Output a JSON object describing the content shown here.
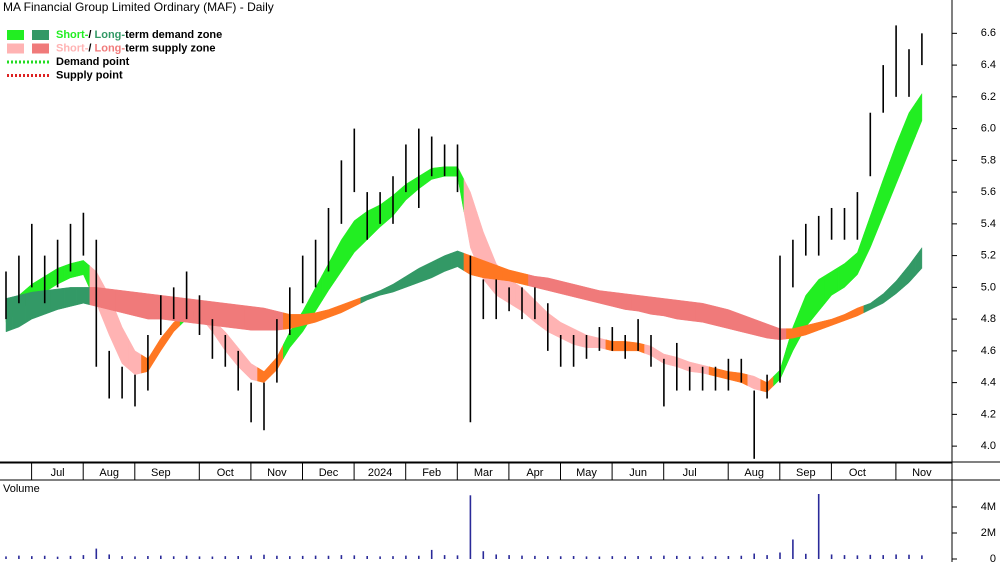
{
  "chart_data": [
    {
      "type": "hilo",
      "title": "MA Financial Group Limited Ordinary (MAF) - Daily",
      "categories": [
        null,
        null,
        null,
        null,
        "Jul",
        null,
        null,
        null,
        "Aug",
        null,
        null,
        null,
        "Sep",
        null,
        null,
        null,
        null,
        "Oct",
        null,
        null,
        null,
        "Nov",
        null,
        null,
        null,
        "Dec",
        null,
        null,
        null,
        "2024",
        null,
        null,
        null,
        "Feb",
        null,
        null,
        null,
        "Mar",
        null,
        null,
        null,
        "Apr",
        null,
        null,
        null,
        "May",
        null,
        null,
        null,
        "Jun",
        null,
        null,
        null,
        "Jul",
        null,
        null,
        null,
        null,
        "Aug",
        null,
        null,
        null,
        "Sep",
        null,
        null,
        null,
        "Oct",
        null,
        null,
        null,
        null,
        "Nov"
      ],
      "low": [
        4.8,
        4.9,
        5.0,
        4.9,
        5.0,
        5.1,
        5.2,
        4.5,
        4.3,
        4.3,
        4.25,
        4.35,
        4.7,
        4.8,
        4.8,
        4.7,
        4.55,
        4.5,
        4.35,
        4.15,
        4.1,
        4.4,
        4.7,
        4.9,
        5.0,
        5.1,
        5.4,
        5.6,
        5.3,
        5.4,
        5.4,
        5.6,
        5.5,
        5.7,
        5.7,
        5.6,
        4.15,
        4.8,
        4.8,
        4.85,
        4.8,
        4.8,
        4.6,
        4.5,
        4.5,
        4.55,
        4.6,
        4.6,
        4.55,
        4.6,
        4.5,
        4.25,
        4.35,
        4.35,
        4.35,
        4.35,
        4.35,
        4.4,
        3.92,
        4.3,
        4.4,
        5.0,
        5.2,
        5.2,
        5.3,
        5.3,
        5.3,
        5.7,
        6.1,
        6.2,
        6.2,
        6.4
      ],
      "high": [
        5.1,
        5.2,
        5.4,
        5.2,
        5.3,
        5.4,
        5.47,
        5.3,
        4.6,
        4.5,
        4.45,
        4.7,
        4.95,
        5.0,
        5.1,
        4.95,
        4.8,
        4.7,
        4.6,
        4.4,
        4.4,
        4.8,
        5.0,
        5.2,
        5.3,
        5.5,
        5.8,
        6.0,
        5.6,
        5.6,
        5.7,
        5.9,
        6.0,
        5.95,
        5.9,
        5.9,
        5.2,
        5.05,
        5.05,
        5.0,
        5.0,
        5.0,
        4.9,
        4.7,
        4.7,
        4.7,
        4.75,
        4.75,
        4.7,
        4.8,
        4.7,
        4.55,
        4.65,
        4.5,
        4.5,
        4.5,
        4.55,
        4.55,
        4.35,
        4.45,
        5.2,
        5.3,
        5.4,
        5.45,
        5.5,
        5.5,
        5.6,
        6.1,
        6.4,
        6.65,
        6.5,
        6.6
      ],
      "bar_color": "#000000",
      "bands": [
        {
          "lower": [
            4.78,
            4.85,
            4.92,
            4.97,
            5.02,
            5.06,
            5.08,
            4.9,
            4.7,
            4.52,
            4.45,
            4.47,
            4.6,
            4.72,
            4.8,
            4.82,
            4.72,
            4.6,
            4.5,
            4.42,
            4.4,
            4.48,
            4.62,
            4.72,
            4.85,
            4.98,
            5.1,
            5.22,
            5.3,
            5.38,
            5.45,
            5.55,
            5.62,
            5.68,
            5.7,
            5.7,
            5.25,
            5.05,
            4.95,
            4.9,
            4.85,
            4.78,
            4.72,
            4.68,
            4.64,
            4.62,
            4.62,
            4.6,
            4.6,
            4.6,
            4.57,
            4.52,
            4.5,
            4.47,
            4.46,
            4.44,
            4.42,
            4.4,
            4.36,
            4.34,
            4.42,
            4.6,
            4.75,
            4.85,
            4.95,
            5.0,
            5.08,
            5.25,
            5.45,
            5.65,
            5.85,
            6.05
          ],
          "upper": [
            4.88,
            4.95,
            5.02,
            5.07,
            5.12,
            5.15,
            5.17,
            5.1,
            4.95,
            4.75,
            4.6,
            4.55,
            4.68,
            4.78,
            4.84,
            4.86,
            4.8,
            4.72,
            4.62,
            4.52,
            4.47,
            4.56,
            4.72,
            4.85,
            5.0,
            5.15,
            5.3,
            5.42,
            5.48,
            5.52,
            5.58,
            5.65,
            5.7,
            5.75,
            5.76,
            5.76,
            5.6,
            5.35,
            5.15,
            5.05,
            5.0,
            4.92,
            4.84,
            4.78,
            4.74,
            4.7,
            4.68,
            4.66,
            4.66,
            4.65,
            4.63,
            4.58,
            4.56,
            4.53,
            4.51,
            4.49,
            4.47,
            4.46,
            4.44,
            4.4,
            4.48,
            4.75,
            4.95,
            5.05,
            5.1,
            5.15,
            5.22,
            5.45,
            5.68,
            5.9,
            6.1,
            6.22
          ],
          "colors": [
            "#22ee22",
            "#22ee22",
            "#22ee22",
            "#22ee22",
            "#22ee22",
            "#22ee22",
            "#22ee22",
            "#ffb3b3",
            "#ffb3b3",
            "#ffb3b3",
            "#ffb3b3",
            "#ff7722",
            "#ff7722",
            "#ff7722",
            "#22ee22",
            "#22ee22",
            "#ffb3b3",
            "#ffb3b3",
            "#ffb3b3",
            "#ffb3b3",
            "#ff7722",
            "#ff7722",
            "#22ee22",
            "#22ee22",
            "#22ee22",
            "#22ee22",
            "#22ee22",
            "#22ee22",
            "#22ee22",
            "#22ee22",
            "#22ee22",
            "#22ee22",
            "#22ee22",
            "#22ee22",
            "#22ee22",
            "#22ee22",
            "#ffb3b3",
            "#ffb3b3",
            "#ffb3b3",
            "#ffb3b3",
            "#ffb3b3",
            "#ffb3b3",
            "#ffb3b3",
            "#ffb3b3",
            "#ffb3b3",
            "#ffb3b3",
            "#ffb3b3",
            "#ff7722",
            "#ff7722",
            "#ff7722",
            "#ffb3b3",
            "#ffb3b3",
            "#ffb3b3",
            "#ffb3b3",
            "#ffb3b3",
            "#ff7722",
            "#ff7722",
            "#ff7722",
            "#ffb3b3",
            "#ff7722",
            "#22ee22",
            "#22ee22",
            "#22ee22",
            "#22ee22",
            "#22ee22",
            "#22ee22",
            "#22ee22",
            "#22ee22",
            "#22ee22",
            "#22ee22",
            "#22ee22",
            "#22ee22"
          ]
        },
        {
          "lower": [
            4.72,
            4.75,
            4.8,
            4.83,
            4.86,
            4.88,
            4.9,
            4.88,
            4.86,
            4.84,
            4.82,
            4.8,
            4.8,
            4.79,
            4.78,
            4.77,
            4.76,
            4.75,
            4.74,
            4.73,
            4.73,
            4.73,
            4.74,
            4.76,
            4.78,
            4.81,
            4.84,
            4.88,
            4.92,
            4.95,
            4.97,
            5.0,
            5.03,
            5.06,
            5.1,
            5.13,
            5.08,
            5.06,
            5.05,
            5.04,
            5.02,
            5.0,
            4.98,
            4.96,
            4.94,
            4.92,
            4.9,
            4.88,
            4.86,
            4.85,
            4.83,
            4.82,
            4.8,
            4.79,
            4.78,
            4.76,
            4.74,
            4.72,
            4.7,
            4.68,
            4.67,
            4.68,
            4.7,
            4.73,
            4.76,
            4.79,
            4.82,
            4.86,
            4.9,
            4.96,
            5.03,
            5.12
          ],
          "upper": [
            4.93,
            4.95,
            4.97,
            4.98,
            4.99,
            5.0,
            5.0,
            5.0,
            4.99,
            4.98,
            4.97,
            4.96,
            4.95,
            4.94,
            4.93,
            4.92,
            4.91,
            4.9,
            4.89,
            4.88,
            4.87,
            4.85,
            4.83,
            4.83,
            4.84,
            4.86,
            4.89,
            4.92,
            4.95,
            4.98,
            5.02,
            5.07,
            5.12,
            5.16,
            5.2,
            5.23,
            5.2,
            5.17,
            5.14,
            5.11,
            5.09,
            5.07,
            5.06,
            5.04,
            5.02,
            5.0,
            4.98,
            4.97,
            4.96,
            4.95,
            4.94,
            4.93,
            4.92,
            4.91,
            4.9,
            4.88,
            4.86,
            4.83,
            4.8,
            4.77,
            4.74,
            4.74,
            4.76,
            4.78,
            4.8,
            4.83,
            4.87,
            4.9,
            4.96,
            5.04,
            5.14,
            5.25
          ],
          "colors": [
            "#339966",
            "#339966",
            "#339966",
            "#339966",
            "#339966",
            "#339966",
            "#339966",
            "#f07a7a",
            "#f07a7a",
            "#f07a7a",
            "#f07a7a",
            "#f07a7a",
            "#f07a7a",
            "#f07a7a",
            "#f07a7a",
            "#f07a7a",
            "#f07a7a",
            "#f07a7a",
            "#f07a7a",
            "#f07a7a",
            "#f07a7a",
            "#f07a7a",
            "#ff7722",
            "#ff7722",
            "#ff7722",
            "#ff7722",
            "#ff7722",
            "#ff7722",
            "#339966",
            "#339966",
            "#339966",
            "#339966",
            "#339966",
            "#339966",
            "#339966",
            "#339966",
            "#ff7722",
            "#ff7722",
            "#ff7722",
            "#ff7722",
            "#ff7722",
            "#f07a7a",
            "#f07a7a",
            "#f07a7a",
            "#f07a7a",
            "#f07a7a",
            "#f07a7a",
            "#f07a7a",
            "#f07a7a",
            "#f07a7a",
            "#f07a7a",
            "#f07a7a",
            "#f07a7a",
            "#f07a7a",
            "#f07a7a",
            "#f07a7a",
            "#f07a7a",
            "#f07a7a",
            "#f07a7a",
            "#f07a7a",
            "#f07a7a",
            "#ff7722",
            "#ff7722",
            "#ff7722",
            "#ff7722",
            "#ff7722",
            "#ff7722",
            "#339966",
            "#339966",
            "#339966",
            "#339966",
            "#339966"
          ]
        }
      ],
      "legend": [
        {
          "colors": [
            "#22ee22",
            "#339966"
          ],
          "parts": [
            "Short-",
            "/ ",
            "Long-",
            "term demand zone"
          ]
        },
        {
          "colors": [
            "#ffb3b3",
            "#f07a7a"
          ],
          "parts": [
            "Short-",
            "/ ",
            "Long-",
            "term supply zone"
          ]
        },
        {
          "color": "#22dd22",
          "style": "dotted",
          "text": "Demand point"
        },
        {
          "color": "#dd2222",
          "style": "dotted",
          "text": "Supply point"
        }
      ],
      "ylim": [
        3.9,
        6.81
      ],
      "yticks": [
        6.6,
        6.4,
        6.2,
        {
          "value": 6,
          "label": "6.0"
        },
        5.8,
        5.6,
        5.4,
        5.2,
        {
          "value": 5,
          "label": "5.0"
        },
        4.8,
        4.6,
        4.4,
        4.2,
        {
          "value": 4,
          "label": "4.0"
        }
      ]
    },
    {
      "type": "bar",
      "title": "Volume",
      "title_color": "#660099",
      "color": "#2a2a99",
      "values": [
        200000,
        260000,
        220000,
        250000,
        180000,
        240000,
        300000,
        800000,
        350000,
        220000,
        200000,
        230000,
        260000,
        210000,
        250000,
        200000,
        190000,
        220000,
        230000,
        280000,
        330000,
        250000,
        220000,
        240000,
        260000,
        250000,
        300000,
        280000,
        230000,
        200000,
        220000,
        260000,
        250000,
        700000,
        300000,
        280000,
        4900000,
        600000,
        350000,
        300000,
        260000,
        240000,
        220000,
        210000,
        230000,
        200000,
        190000,
        220000,
        210000,
        230000,
        220000,
        260000,
        240000,
        210000,
        200000,
        220000,
        230000,
        250000,
        420000,
        300000,
        500000,
        1500000,
        400000,
        5000000,
        350000,
        300000,
        280000,
        320000,
        300000,
        350000,
        330000,
        280000
      ],
      "ylim": [
        0,
        6000000
      ],
      "yticks": [
        {
          "value": 4000000,
          "label": "4M"
        },
        {
          "value": 2000000,
          "label": "2M"
        },
        0
      ]
    }
  ]
}
